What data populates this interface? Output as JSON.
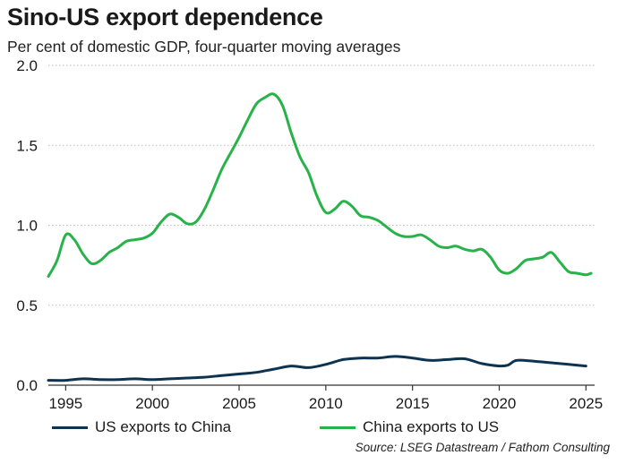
{
  "title": "Sino-US export dependence",
  "subtitle": "Per cent of domestic GDP, four-quarter moving averages",
  "source": "Source: LSEG Datastream / Fathom Consulting",
  "colors": {
    "us_to_china": "#0d3350",
    "china_to_us": "#27b24a",
    "grid": "#b8b8b8"
  },
  "chart_data": {
    "type": "line",
    "title": "Sino-US export dependence",
    "xlabel": "",
    "ylabel": "Per cent of domestic GDP, four-quarter moving averages",
    "xlim": [
      1994,
      2025.5
    ],
    "ylim": [
      0,
      2.0
    ],
    "x_ticks": [
      "1995",
      "2000",
      "2005",
      "2010",
      "2015",
      "2020",
      "2025"
    ],
    "y_ticks": [
      "0.0",
      "0.5",
      "1.0",
      "1.5",
      "2.0"
    ],
    "grid": "horizontal dotted",
    "legend_position": "bottom",
    "series": [
      {
        "name": "US exports to China",
        "color": "#0d3350",
        "points": [
          [
            1994,
            0.03
          ],
          [
            1995,
            0.03
          ],
          [
            1996,
            0.04
          ],
          [
            1997,
            0.035
          ],
          [
            1998,
            0.035
          ],
          [
            1999,
            0.04
          ],
          [
            2000,
            0.035
          ],
          [
            2001,
            0.04
          ],
          [
            2002,
            0.045
          ],
          [
            2003,
            0.05
          ],
          [
            2004,
            0.06
          ],
          [
            2005,
            0.07
          ],
          [
            2006,
            0.08
          ],
          [
            2007,
            0.1
          ],
          [
            2008,
            0.12
          ],
          [
            2009,
            0.11
          ],
          [
            2010,
            0.13
          ],
          [
            2011,
            0.16
          ],
          [
            2012,
            0.17
          ],
          [
            2013,
            0.17
          ],
          [
            2014,
            0.18
          ],
          [
            2015,
            0.17
          ],
          [
            2016,
            0.155
          ],
          [
            2017,
            0.16
          ],
          [
            2018,
            0.165
          ],
          [
            2019,
            0.135
          ],
          [
            2020,
            0.12
          ],
          [
            2020.5,
            0.125
          ],
          [
            2021,
            0.155
          ],
          [
            2022,
            0.15
          ],
          [
            2023,
            0.14
          ],
          [
            2024,
            0.13
          ],
          [
            2025,
            0.12
          ]
        ]
      },
      {
        "name": "China exports to US",
        "color": "#27b24a",
        "points": [
          [
            1994,
            0.68
          ],
          [
            1994.5,
            0.78
          ],
          [
            1995,
            0.94
          ],
          [
            1995.5,
            0.91
          ],
          [
            1996,
            0.82
          ],
          [
            1996.5,
            0.76
          ],
          [
            1997,
            0.78
          ],
          [
            1997.5,
            0.83
          ],
          [
            1998,
            0.86
          ],
          [
            1998.5,
            0.9
          ],
          [
            1999,
            0.91
          ],
          [
            1999.5,
            0.92
          ],
          [
            2000,
            0.95
          ],
          [
            2000.5,
            1.02
          ],
          [
            2001,
            1.07
          ],
          [
            2001.5,
            1.05
          ],
          [
            2002,
            1.01
          ],
          [
            2002.5,
            1.02
          ],
          [
            2003,
            1.1
          ],
          [
            2003.5,
            1.22
          ],
          [
            2004,
            1.35
          ],
          [
            2004.5,
            1.45
          ],
          [
            2005,
            1.55
          ],
          [
            2005.5,
            1.66
          ],
          [
            2006,
            1.76
          ],
          [
            2006.5,
            1.8
          ],
          [
            2007,
            1.82
          ],
          [
            2007.5,
            1.75
          ],
          [
            2008,
            1.58
          ],
          [
            2008.5,
            1.43
          ],
          [
            2009,
            1.33
          ],
          [
            2009.5,
            1.18
          ],
          [
            2010,
            1.08
          ],
          [
            2010.5,
            1.1
          ],
          [
            2011,
            1.15
          ],
          [
            2011.5,
            1.12
          ],
          [
            2012,
            1.06
          ],
          [
            2012.5,
            1.05
          ],
          [
            2013,
            1.03
          ],
          [
            2013.5,
            0.99
          ],
          [
            2014,
            0.95
          ],
          [
            2014.5,
            0.93
          ],
          [
            2015,
            0.93
          ],
          [
            2015.5,
            0.94
          ],
          [
            2016,
            0.91
          ],
          [
            2016.5,
            0.87
          ],
          [
            2017,
            0.86
          ],
          [
            2017.5,
            0.87
          ],
          [
            2018,
            0.85
          ],
          [
            2018.5,
            0.84
          ],
          [
            2019,
            0.85
          ],
          [
            2019.5,
            0.8
          ],
          [
            2020,
            0.72
          ],
          [
            2020.5,
            0.7
          ],
          [
            2021,
            0.73
          ],
          [
            2021.5,
            0.78
          ],
          [
            2022,
            0.79
          ],
          [
            2022.5,
            0.8
          ],
          [
            2023,
            0.83
          ],
          [
            2023.5,
            0.77
          ],
          [
            2024,
            0.71
          ],
          [
            2024.5,
            0.7
          ],
          [
            2025,
            0.69
          ],
          [
            2025.3,
            0.7
          ]
        ]
      }
    ]
  }
}
